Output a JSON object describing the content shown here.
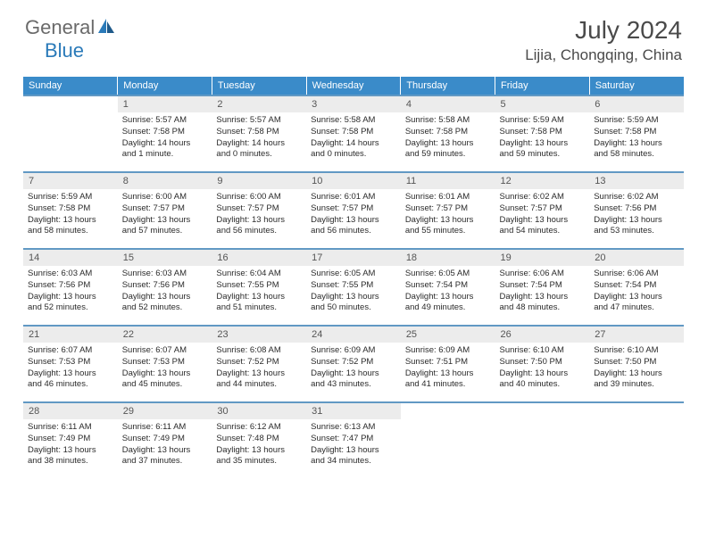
{
  "logo": {
    "text1": "General",
    "text2": "Blue"
  },
  "title": "July 2024",
  "location": "Lijia, Chongqing, China",
  "colors": {
    "header_bg": "#3a8bc9",
    "header_text": "#ffffff",
    "row_border": "#6199c4",
    "daynum_bg": "#ececec",
    "body_text": "#2b2b2b",
    "title_text": "#4a4a4a",
    "logo_gray": "#6a6a6a",
    "logo_blue": "#2a7ab9"
  },
  "day_headers": [
    "Sunday",
    "Monday",
    "Tuesday",
    "Wednesday",
    "Thursday",
    "Friday",
    "Saturday"
  ],
  "weeks": [
    [
      {
        "n": "",
        "lines": []
      },
      {
        "n": "1",
        "lines": [
          "Sunrise: 5:57 AM",
          "Sunset: 7:58 PM",
          "Daylight: 14 hours",
          "and 1 minute."
        ]
      },
      {
        "n": "2",
        "lines": [
          "Sunrise: 5:57 AM",
          "Sunset: 7:58 PM",
          "Daylight: 14 hours",
          "and 0 minutes."
        ]
      },
      {
        "n": "3",
        "lines": [
          "Sunrise: 5:58 AM",
          "Sunset: 7:58 PM",
          "Daylight: 14 hours",
          "and 0 minutes."
        ]
      },
      {
        "n": "4",
        "lines": [
          "Sunrise: 5:58 AM",
          "Sunset: 7:58 PM",
          "Daylight: 13 hours",
          "and 59 minutes."
        ]
      },
      {
        "n": "5",
        "lines": [
          "Sunrise: 5:59 AM",
          "Sunset: 7:58 PM",
          "Daylight: 13 hours",
          "and 59 minutes."
        ]
      },
      {
        "n": "6",
        "lines": [
          "Sunrise: 5:59 AM",
          "Sunset: 7:58 PM",
          "Daylight: 13 hours",
          "and 58 minutes."
        ]
      }
    ],
    [
      {
        "n": "7",
        "lines": [
          "Sunrise: 5:59 AM",
          "Sunset: 7:58 PM",
          "Daylight: 13 hours",
          "and 58 minutes."
        ]
      },
      {
        "n": "8",
        "lines": [
          "Sunrise: 6:00 AM",
          "Sunset: 7:57 PM",
          "Daylight: 13 hours",
          "and 57 minutes."
        ]
      },
      {
        "n": "9",
        "lines": [
          "Sunrise: 6:00 AM",
          "Sunset: 7:57 PM",
          "Daylight: 13 hours",
          "and 56 minutes."
        ]
      },
      {
        "n": "10",
        "lines": [
          "Sunrise: 6:01 AM",
          "Sunset: 7:57 PM",
          "Daylight: 13 hours",
          "and 56 minutes."
        ]
      },
      {
        "n": "11",
        "lines": [
          "Sunrise: 6:01 AM",
          "Sunset: 7:57 PM",
          "Daylight: 13 hours",
          "and 55 minutes."
        ]
      },
      {
        "n": "12",
        "lines": [
          "Sunrise: 6:02 AM",
          "Sunset: 7:57 PM",
          "Daylight: 13 hours",
          "and 54 minutes."
        ]
      },
      {
        "n": "13",
        "lines": [
          "Sunrise: 6:02 AM",
          "Sunset: 7:56 PM",
          "Daylight: 13 hours",
          "and 53 minutes."
        ]
      }
    ],
    [
      {
        "n": "14",
        "lines": [
          "Sunrise: 6:03 AM",
          "Sunset: 7:56 PM",
          "Daylight: 13 hours",
          "and 52 minutes."
        ]
      },
      {
        "n": "15",
        "lines": [
          "Sunrise: 6:03 AM",
          "Sunset: 7:56 PM",
          "Daylight: 13 hours",
          "and 52 minutes."
        ]
      },
      {
        "n": "16",
        "lines": [
          "Sunrise: 6:04 AM",
          "Sunset: 7:55 PM",
          "Daylight: 13 hours",
          "and 51 minutes."
        ]
      },
      {
        "n": "17",
        "lines": [
          "Sunrise: 6:05 AM",
          "Sunset: 7:55 PM",
          "Daylight: 13 hours",
          "and 50 minutes."
        ]
      },
      {
        "n": "18",
        "lines": [
          "Sunrise: 6:05 AM",
          "Sunset: 7:54 PM",
          "Daylight: 13 hours",
          "and 49 minutes."
        ]
      },
      {
        "n": "19",
        "lines": [
          "Sunrise: 6:06 AM",
          "Sunset: 7:54 PM",
          "Daylight: 13 hours",
          "and 48 minutes."
        ]
      },
      {
        "n": "20",
        "lines": [
          "Sunrise: 6:06 AM",
          "Sunset: 7:54 PM",
          "Daylight: 13 hours",
          "and 47 minutes."
        ]
      }
    ],
    [
      {
        "n": "21",
        "lines": [
          "Sunrise: 6:07 AM",
          "Sunset: 7:53 PM",
          "Daylight: 13 hours",
          "and 46 minutes."
        ]
      },
      {
        "n": "22",
        "lines": [
          "Sunrise: 6:07 AM",
          "Sunset: 7:53 PM",
          "Daylight: 13 hours",
          "and 45 minutes."
        ]
      },
      {
        "n": "23",
        "lines": [
          "Sunrise: 6:08 AM",
          "Sunset: 7:52 PM",
          "Daylight: 13 hours",
          "and 44 minutes."
        ]
      },
      {
        "n": "24",
        "lines": [
          "Sunrise: 6:09 AM",
          "Sunset: 7:52 PM",
          "Daylight: 13 hours",
          "and 43 minutes."
        ]
      },
      {
        "n": "25",
        "lines": [
          "Sunrise: 6:09 AM",
          "Sunset: 7:51 PM",
          "Daylight: 13 hours",
          "and 41 minutes."
        ]
      },
      {
        "n": "26",
        "lines": [
          "Sunrise: 6:10 AM",
          "Sunset: 7:50 PM",
          "Daylight: 13 hours",
          "and 40 minutes."
        ]
      },
      {
        "n": "27",
        "lines": [
          "Sunrise: 6:10 AM",
          "Sunset: 7:50 PM",
          "Daylight: 13 hours",
          "and 39 minutes."
        ]
      }
    ],
    [
      {
        "n": "28",
        "lines": [
          "Sunrise: 6:11 AM",
          "Sunset: 7:49 PM",
          "Daylight: 13 hours",
          "and 38 minutes."
        ]
      },
      {
        "n": "29",
        "lines": [
          "Sunrise: 6:11 AM",
          "Sunset: 7:49 PM",
          "Daylight: 13 hours",
          "and 37 minutes."
        ]
      },
      {
        "n": "30",
        "lines": [
          "Sunrise: 6:12 AM",
          "Sunset: 7:48 PM",
          "Daylight: 13 hours",
          "and 35 minutes."
        ]
      },
      {
        "n": "31",
        "lines": [
          "Sunrise: 6:13 AM",
          "Sunset: 7:47 PM",
          "Daylight: 13 hours",
          "and 34 minutes."
        ]
      },
      {
        "n": "",
        "lines": []
      },
      {
        "n": "",
        "lines": []
      },
      {
        "n": "",
        "lines": []
      }
    ]
  ]
}
